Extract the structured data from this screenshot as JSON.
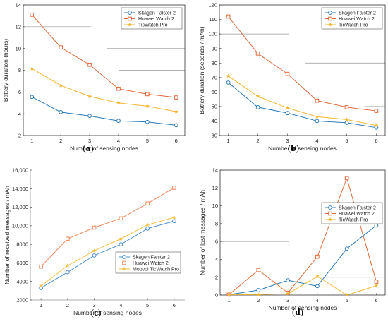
{
  "chart_data": [
    {
      "panel_label": "a",
      "type": "line",
      "xlabel": "Number of sensing nodes",
      "ylabel": "Battery duration (hours)",
      "xlim": [
        0.7,
        6.3
      ],
      "ylim": [
        2,
        14
      ],
      "xticks": [
        1,
        2,
        3,
        4,
        5,
        6
      ],
      "yticks": [
        2,
        4,
        6,
        8,
        10,
        12,
        14
      ],
      "grid": "partial horizontal",
      "legend_position": "top-right",
      "x": [
        1,
        2,
        3,
        4,
        5,
        6
      ],
      "series": [
        {
          "name": "Skagen Falster 2",
          "color": "#2a7ab8",
          "marker": "circle",
          "values": [
            5.55,
            4.15,
            3.8,
            3.35,
            3.25,
            2.95
          ]
        },
        {
          "name": "Huawei Watch 2",
          "color": "#e06a3b",
          "marker": "square",
          "values": [
            13.1,
            10.1,
            8.5,
            6.3,
            5.8,
            5.5
          ]
        },
        {
          "name": "TicWatch Pro",
          "color": "#f2b630",
          "marker": "star",
          "values": [
            8.15,
            6.6,
            5.6,
            5.0,
            4.7,
            4.2
          ]
        }
      ]
    },
    {
      "panel_label": "b",
      "type": "line",
      "xlabel": "Number of sensing nodes",
      "ylabel": "Battery duration (seconds / mAh)",
      "xlim": [
        0.7,
        6.3
      ],
      "ylim": [
        30,
        120
      ],
      "xticks": [
        1,
        2,
        3,
        4,
        5,
        6
      ],
      "yticks": [
        30,
        40,
        50,
        60,
        70,
        80,
        90,
        100,
        110,
        120
      ],
      "grid": "partial horizontal",
      "legend_position": "top-right",
      "x": [
        1,
        2,
        3,
        4,
        5,
        6
      ],
      "series": [
        {
          "name": "Skagen Falster 2",
          "color": "#2a7ab8",
          "marker": "circle",
          "values": [
            66.5,
            49.5,
            45.5,
            40.0,
            38.8,
            35.5
          ]
        },
        {
          "name": "Huawei Watch 2",
          "color": "#e06a3b",
          "marker": "square",
          "values": [
            112,
            86.5,
            72.5,
            54.0,
            49.5,
            47.0
          ]
        },
        {
          "name": "TicWatch Pro",
          "color": "#f2b630",
          "marker": "star",
          "values": [
            71.0,
            57.0,
            49.0,
            43.0,
            41.0,
            37.0
          ]
        }
      ]
    },
    {
      "panel_label": "c",
      "type": "line",
      "xlabel": "Number of sensing nodes",
      "ylabel": "Number of received messages / mAh",
      "xlim": [
        0.6,
        6.4
      ],
      "ylim": [
        2000,
        16000
      ],
      "xticks": [
        1,
        2,
        3,
        4,
        5,
        6
      ],
      "yticks": [
        2000,
        4000,
        6000,
        8000,
        10000,
        12000,
        14000,
        16000
      ],
      "ytick_labels": [
        "2000",
        "4000",
        "6000",
        "8000",
        "10,000",
        "12,000",
        "14,000",
        "16,000"
      ],
      "grid": "off",
      "legend_position": "bottom-right",
      "x": [
        1,
        2,
        3,
        4,
        5,
        6
      ],
      "series": [
        {
          "name": "Skagen Falster 2",
          "color": "#4a8fd0",
          "marker": "circle",
          "values": [
            3300,
            5000,
            6800,
            8000,
            9700,
            10500
          ]
        },
        {
          "name": "Huawei Watch 2",
          "color": "#f08a5a",
          "marker": "square",
          "values": [
            5600,
            8600,
            9800,
            10800,
            12400,
            14100
          ]
        },
        {
          "name": "Mobvoi TicWatch Pro",
          "color": "#f4c040",
          "marker": "star",
          "values": [
            3500,
            5700,
            7300,
            8600,
            10100,
            10900
          ]
        }
      ]
    },
    {
      "panel_label": "d",
      "type": "line",
      "xlabel": "Number of sensing nodes",
      "ylabel": "Number of lost messages / mAh",
      "xlim": [
        0.7,
        6.3
      ],
      "ylim": [
        0,
        14
      ],
      "xticks": [
        1,
        2,
        3,
        4,
        5,
        6
      ],
      "yticks": [
        0,
        2,
        4,
        6,
        8,
        10,
        12,
        14
      ],
      "grid": "partial horizontal",
      "legend_position": "top-right",
      "x": [
        1,
        2,
        3,
        4,
        5,
        6
      ],
      "series": [
        {
          "name": "Skagen Falster 2",
          "color": "#2a7ab8",
          "marker": "circle",
          "values": [
            0.05,
            0.55,
            1.65,
            1.0,
            5.2,
            7.8
          ]
        },
        {
          "name": "Huawei Watch 2",
          "color": "#e06a3b",
          "marker": "square",
          "values": [
            0.05,
            2.8,
            0.25,
            4.3,
            13.1,
            1.5
          ]
        },
        {
          "name": "TicWatch Pro",
          "color": "#f2b630",
          "marker": "star",
          "values": [
            0.05,
            0.05,
            0.15,
            2.1,
            0.0,
            1.05
          ]
        }
      ]
    }
  ]
}
